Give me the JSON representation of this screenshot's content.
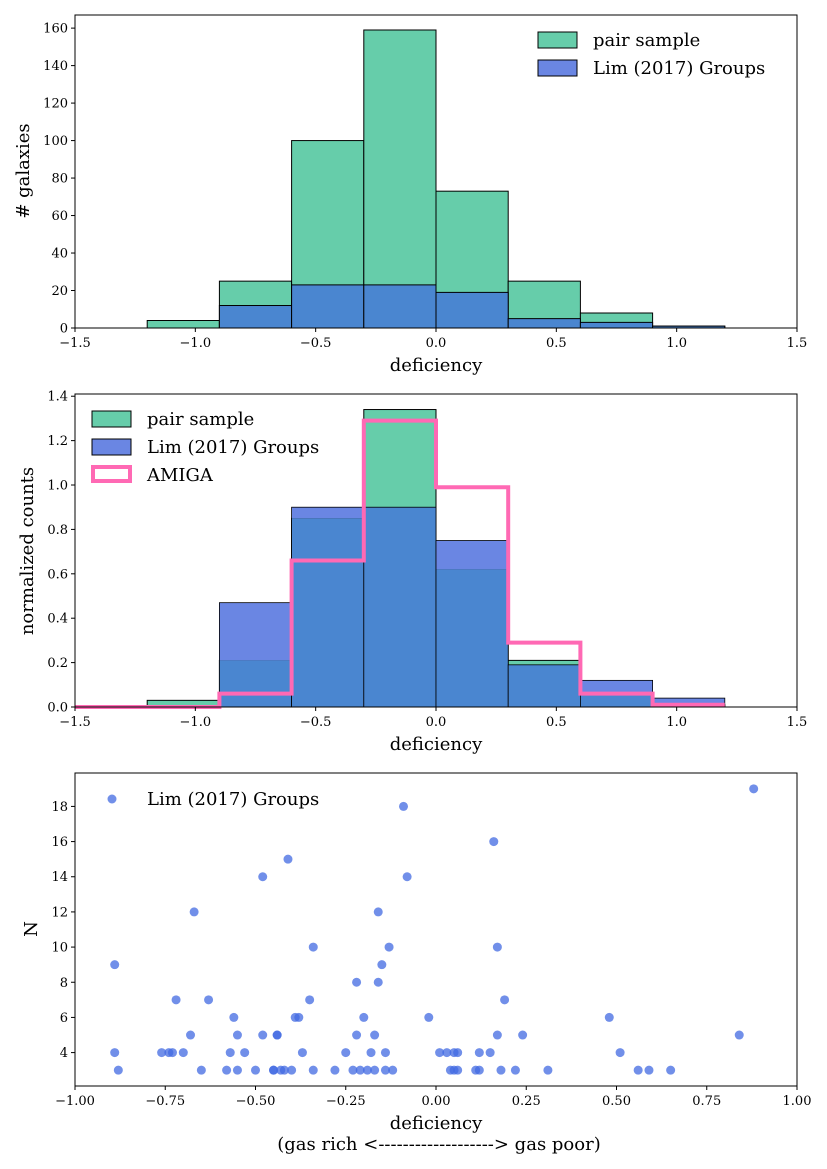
{
  "colors": {
    "pair": "#66cdaa",
    "lim": "#6a86e3",
    "overlap": "#4a86d0",
    "amiga": "#ff69b4",
    "scatter": "#4169e1"
  },
  "bins": [
    -1.5,
    -1.2,
    -0.9,
    -0.6,
    -0.3,
    0.0,
    0.3,
    0.6,
    0.9,
    1.2
  ],
  "chart_data": [
    {
      "type": "bar",
      "subtype": "histogram",
      "xlabel": "deficiency",
      "ylabel": "# galaxies",
      "xlim": [
        -1.5,
        1.5
      ],
      "ylim": [
        0,
        167
      ],
      "xticks": [
        -1.5,
        -1.0,
        -0.5,
        0.0,
        0.5,
        1.0,
        1.5
      ],
      "xtick_labels": [
        "−1.5",
        "−1.0",
        "−0.5",
        "0.0",
        "0.5",
        "1.0",
        "1.5"
      ],
      "yticks": [
        0,
        20,
        40,
        60,
        80,
        100,
        120,
        140,
        160
      ],
      "ytick_labels": [
        "0",
        "20",
        "40",
        "60",
        "80",
        "100",
        "120",
        "140",
        "160"
      ],
      "legend_position": "top-right",
      "series": [
        {
          "name": "pair sample",
          "values": [
            0,
            4,
            25,
            100,
            159,
            73,
            25,
            8,
            1
          ]
        },
        {
          "name": "Lim (2017) Groups",
          "values": [
            0,
            0,
            12,
            23,
            23,
            19,
            5,
            3,
            1
          ]
        }
      ]
    },
    {
      "type": "bar",
      "subtype": "normalized histogram",
      "xlabel": "deficiency",
      "ylabel": "normalized counts",
      "xlim": [
        -1.5,
        1.5
      ],
      "ylim": [
        0,
        1.41
      ],
      "xticks": [
        -1.5,
        -1.0,
        -0.5,
        0.0,
        0.5,
        1.0,
        1.5
      ],
      "xtick_labels": [
        "−1.5",
        "−1.0",
        "−0.5",
        "0.0",
        "0.5",
        "1.0",
        "1.5"
      ],
      "yticks": [
        0.0,
        0.2,
        0.4,
        0.6,
        0.8,
        1.0,
        1.2,
        1.4
      ],
      "ytick_labels": [
        "0.0",
        "0.2",
        "0.4",
        "0.6",
        "0.8",
        "1.0",
        "1.2",
        "1.4"
      ],
      "legend_position": "top-left",
      "series": [
        {
          "name": "pair sample",
          "values": [
            0,
            0.03,
            0.21,
            0.85,
            1.34,
            0.62,
            0.21,
            0.06,
            0.01
          ]
        },
        {
          "name": "Lim (2017) Groups",
          "values": [
            0,
            0,
            0.47,
            0.9,
            0.9,
            0.75,
            0.19,
            0.12,
            0.04
          ]
        },
        {
          "name": "AMIGA",
          "style": "step",
          "values": [
            0,
            0,
            0.06,
            0.66,
            1.29,
            0.99,
            0.29,
            0.06,
            0.01
          ]
        }
      ]
    },
    {
      "type": "scatter",
      "xlabel": "deficiency",
      "xlabel2": "(gas rich <-------------------> gas poor)",
      "ylabel": "N",
      "xlim": [
        -1.0,
        1.0
      ],
      "ylim": [
        2.1,
        19.9
      ],
      "xticks": [
        -1.0,
        -0.75,
        -0.5,
        -0.25,
        0.0,
        0.25,
        0.5,
        0.75,
        1.0
      ],
      "xtick_labels": [
        "−1.00",
        "−0.75",
        "−0.50",
        "−0.25",
        "0.00",
        "0.25",
        "0.50",
        "0.75",
        "1.00"
      ],
      "yticks": [
        4,
        6,
        8,
        10,
        12,
        14,
        16,
        18
      ],
      "ytick_labels": [
        "4",
        "6",
        "8",
        "10",
        "12",
        "14",
        "16",
        "18"
      ],
      "legend_position": "top-left",
      "series": [
        {
          "name": "Lim (2017) Groups",
          "x": [
            -0.89,
            -0.89,
            -0.88,
            -0.76,
            -0.74,
            -0.73,
            -0.72,
            -0.7,
            -0.68,
            -0.67,
            -0.65,
            -0.63,
            -0.58,
            -0.57,
            -0.56,
            -0.55,
            -0.55,
            -0.53,
            -0.5,
            -0.48,
            -0.48,
            -0.45,
            -0.45,
            -0.44,
            -0.44,
            -0.43,
            -0.42,
            -0.41,
            -0.4,
            -0.39,
            -0.38,
            -0.37,
            -0.35,
            -0.34,
            -0.34,
            -0.28,
            -0.25,
            -0.23,
            -0.22,
            -0.22,
            -0.21,
            -0.2,
            -0.19,
            -0.18,
            -0.17,
            -0.17,
            -0.16,
            -0.16,
            -0.15,
            -0.14,
            -0.14,
            -0.13,
            -0.12,
            -0.09,
            -0.08,
            -0.02,
            0.01,
            0.03,
            0.04,
            0.05,
            0.05,
            0.06,
            0.06,
            0.11,
            0.12,
            0.12,
            0.15,
            0.16,
            0.17,
            0.17,
            0.18,
            0.19,
            0.22,
            0.24,
            0.31,
            0.48,
            0.51,
            0.56,
            0.59,
            0.65,
            0.84,
            0.88
          ],
          "y": [
            9,
            4,
            3,
            4,
            4,
            4,
            7,
            4,
            5,
            12,
            3,
            7,
            3,
            4,
            6,
            3,
            5,
            4,
            3,
            5,
            14,
            3,
            3,
            5,
            5,
            3,
            3,
            15,
            3,
            6,
            6,
            4,
            7,
            10,
            3,
            3,
            4,
            3,
            5,
            8,
            3,
            6,
            3,
            4,
            5,
            3,
            12,
            8,
            9,
            3,
            4,
            10,
            3,
            18,
            14,
            6,
            4,
            4,
            3,
            3,
            4,
            4,
            3,
            3,
            3,
            4,
            4,
            16,
            10,
            5,
            3,
            7,
            3,
            5,
            3,
            6,
            4,
            3,
            3,
            3,
            5,
            19
          ]
        }
      ]
    }
  ]
}
